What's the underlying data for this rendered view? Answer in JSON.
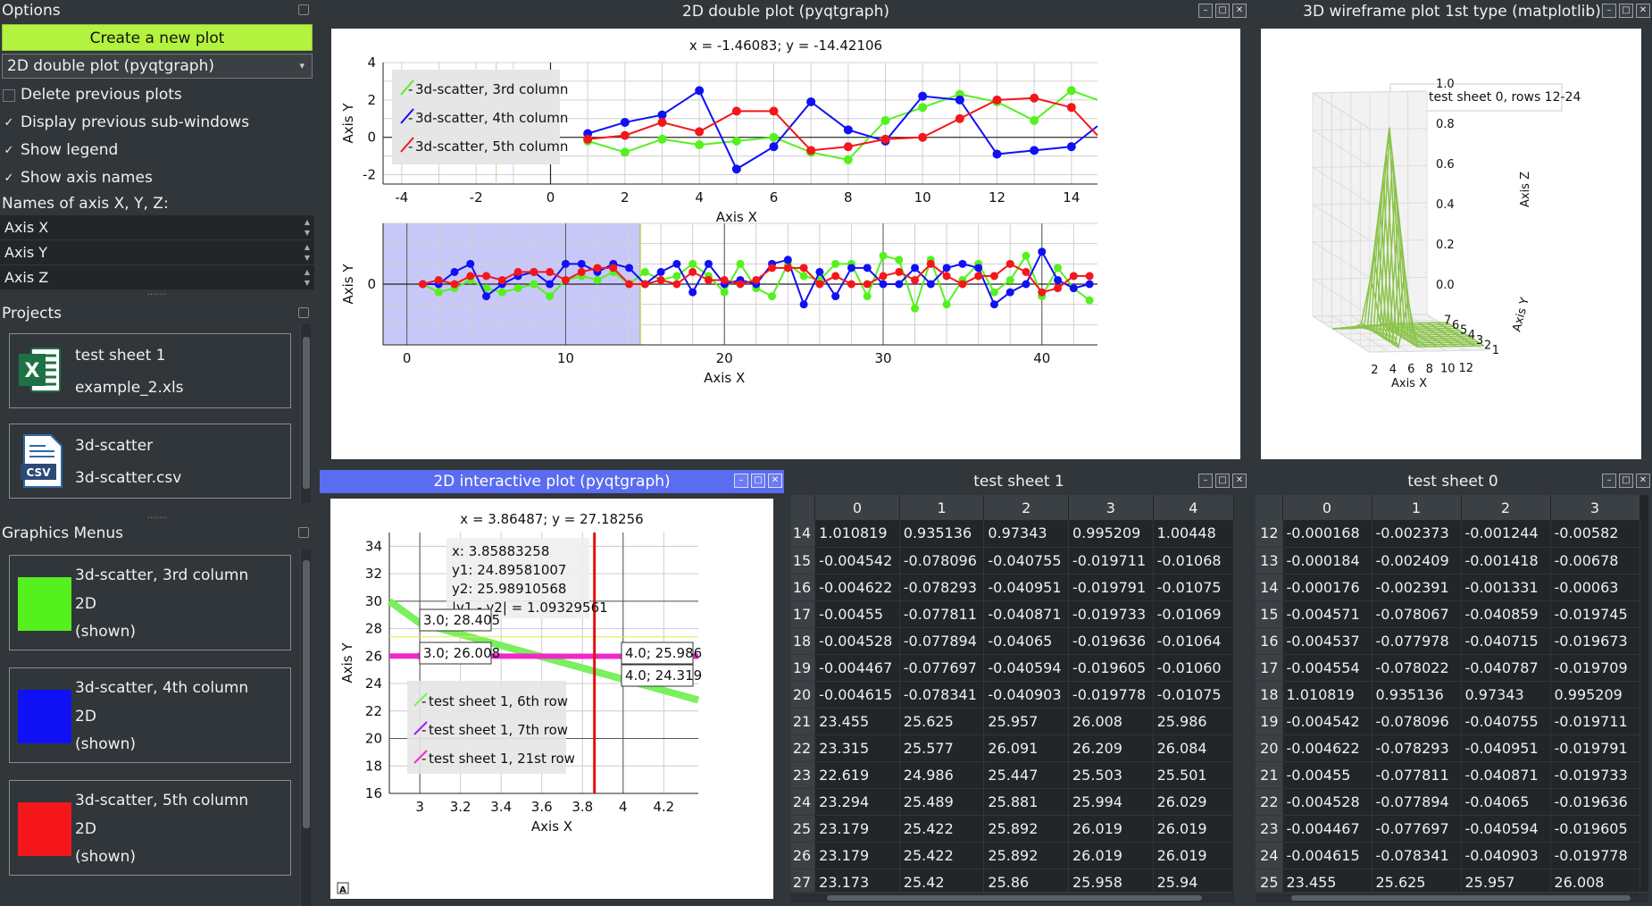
{
  "options_panel": {
    "title": "Options",
    "create_button": "Create a new plot",
    "plot_type_selected": "2D double plot (pyqtgraph)",
    "checks": [
      {
        "label": "Delete previous plots",
        "checked": false
      },
      {
        "label": "Display previous sub-windows",
        "checked": true
      },
      {
        "label": "Show legend",
        "checked": true
      },
      {
        "label": "Show axis names",
        "checked": true
      }
    ],
    "axis_names_label": "Names of axis X, Y, Z:",
    "axis_inputs": [
      "Axis X",
      "Axis Y",
      "Axis Z"
    ]
  },
  "projects_panel": {
    "title": "Projects",
    "items": [
      {
        "name": "test sheet 1",
        "file": "example_2.xls",
        "icon": "excel-icon"
      },
      {
        "name": "3d-scatter",
        "file": "3d-scatter.csv",
        "icon": "csv-file-icon",
        "badge": "CSV"
      }
    ]
  },
  "graphics_menus": {
    "title": "Graphics Menus",
    "items": [
      {
        "name": "3d-scatter, 3rd column",
        "kind": "2D",
        "state": "(shown)",
        "color": "#54f11e"
      },
      {
        "name": "3d-scatter, 4th column",
        "kind": "2D",
        "state": "(shown)",
        "color": "#1010f5"
      },
      {
        "name": "3d-scatter, 5th column",
        "kind": "2D",
        "state": "(shown)",
        "color": "#f5161b"
      }
    ]
  },
  "double_plot": {
    "title": "2D double plot (pyqtgraph)",
    "coord_readout": "x = -1.46083; y = -14.42106",
    "xlabel": "Axis X",
    "ylabel": "Axis Y",
    "legend": [
      "3d-scatter, 3rd column",
      "3d-scatter, 4th column",
      "3d-scatter, 5th column"
    ],
    "top_xticks": [
      "-4",
      "-2",
      "0",
      "2",
      "4",
      "6",
      "8",
      "10",
      "12",
      "14"
    ],
    "top_yticks": [
      "4",
      "2",
      "0",
      "-2"
    ],
    "bottom_xticks": [
      "0",
      "10",
      "20",
      "30",
      "40"
    ],
    "bottom_yticks": [
      "0"
    ],
    "bottom_xlabel": "Axis X",
    "bottom_ylabel": "Axis Y"
  },
  "wireframe_plot": {
    "title": "3D wireframe plot 1st type (matplotlib)",
    "legend": "test sheet 0, rows 12-24",
    "xlabel": "Axis X",
    "ylabel": "Axis Y",
    "zlabel": "Axis Z",
    "xticks": [
      "2",
      "4",
      "6",
      "8",
      "10",
      "12"
    ],
    "yticks": [
      "1",
      "2",
      "3",
      "4",
      "5",
      "6",
      "7"
    ],
    "zticks": [
      "1.0",
      "0.8",
      "0.6",
      "0.4",
      "0.2",
      "0.0"
    ]
  },
  "interactive_plot": {
    "title": "2D interactive plot (pyqtgraph)",
    "coord_readout": "x = 3.86487; y = 27.18256",
    "xlabel": "Axis X",
    "ylabel": "Axis Y",
    "xticks": [
      "3",
      "3.2",
      "3.4",
      "3.6",
      "3.8",
      "4",
      "4.2"
    ],
    "yticks": [
      "34",
      "32",
      "30",
      "28",
      "26",
      "24",
      "22",
      "20",
      "18",
      "16"
    ],
    "info_lines": [
      "x: 3.85883258",
      "y1: 24.89581007",
      "y2: 25.98910568",
      "|y1 - y2| = 1.09329561"
    ],
    "point_labels": [
      "3.0; 28.405",
      "3.0; 26.008",
      "4.0; 25.986",
      "4.0; 24.319"
    ],
    "legend": [
      "test sheet 1, 6th row",
      "test sheet 1, 7th row",
      "test sheet 1, 21st row"
    ],
    "corner_label": "A"
  },
  "chart_data": [
    {
      "type": "line",
      "title": "x = -1.46083; y = -14.42106",
      "xlabel": "Axis X",
      "ylabel": "Axis Y",
      "xlim": [
        -4.5,
        14.7
      ],
      "ylim": [
        -2.5,
        4
      ],
      "x": [
        1,
        2,
        3,
        4,
        5,
        6,
        7,
        8,
        9,
        10,
        11,
        12,
        13,
        14,
        14.7
      ],
      "series": [
        {
          "name": "3d-scatter, 3rd column",
          "color": "#54f11e",
          "values": [
            -0.2,
            -0.8,
            -0.1,
            -0.4,
            -0.2,
            0.0,
            -0.8,
            -1.2,
            0.9,
            1.6,
            2.3,
            1.9,
            0.9,
            2.5,
            2.0
          ]
        },
        {
          "name": "3d-scatter, 4th column",
          "color": "#1010f5",
          "values": [
            0.2,
            0.8,
            1.2,
            2.5,
            -1.7,
            -0.5,
            1.9,
            0.4,
            -0.2,
            2.2,
            2.0,
            -0.9,
            -0.7,
            -0.5,
            0.6
          ]
        },
        {
          "name": "3d-scatter, 5th column",
          "color": "#f5161b",
          "values": [
            -0.1,
            0.1,
            0.8,
            0.3,
            1.4,
            1.4,
            -0.7,
            -0.5,
            -0.1,
            0.0,
            1.0,
            2.0,
            2.1,
            1.6,
            0.1
          ]
        }
      ]
    },
    {
      "type": "line",
      "xlabel": "Axis X",
      "ylabel": "Axis Y",
      "xlim": [
        -1.5,
        43.5
      ],
      "ylim": [
        -1.5,
        1.5
      ],
      "x_start": 1,
      "series": [
        {
          "name": "3d-scatter, 3rd column",
          "color": "#54f11e",
          "values": [
            -0.0,
            -0.2,
            -0.1,
            0.1,
            -0.1,
            -0.2,
            -0.1,
            0.0,
            -0.3,
            0.1,
            0.2,
            0.1,
            0.3,
            0.0,
            0.3,
            0.1,
            0.2,
            0.5,
            0.2,
            -0.2,
            0.5,
            -0.1,
            -0.3,
            0.5,
            0.2,
            0.1,
            0.5,
            0.5,
            -0.3,
            0.7,
            0.6,
            -0.6,
            0.6,
            -0.5,
            0.1,
            0.5,
            -0.2,
            0.1,
            0.7,
            -0.3,
            0.4,
            -0.1,
            -0.4
          ]
        },
        {
          "name": "3d-scatter, 4th column",
          "color": "#1010f5",
          "values": [
            0.0,
            0.0,
            0.3,
            0.5,
            -0.3,
            0.0,
            0.2,
            0.3,
            0.0,
            0.5,
            0.5,
            0.3,
            0.5,
            0.4,
            0.0,
            0.3,
            0.5,
            -0.2,
            0.5,
            0.0,
            0.1,
            0.0,
            0.5,
            0.6,
            -0.5,
            0.3,
            -0.3,
            0.4,
            0.4,
            0.0,
            0.0,
            0.4,
            0.0,
            0.4,
            0.5,
            0.4,
            -0.5,
            -0.2,
            0.0,
            0.8,
            0.1,
            -0.1,
            0.0
          ]
        },
        {
          "name": "3d-scatter, 5th column",
          "color": "#f5161b",
          "values": [
            0.0,
            0.1,
            0.0,
            0.2,
            0.2,
            0.1,
            0.3,
            0.3,
            0.3,
            0.1,
            0.3,
            0.4,
            0.4,
            0.0,
            0.0,
            0.1,
            0.0,
            0.3,
            0.1,
            0.1,
            0.0,
            0.1,
            0.4,
            0.4,
            0.4,
            0.0,
            0.2,
            0.0,
            0.0,
            0.2,
            0.3,
            0.1,
            0.5,
            0.2,
            0.0,
            0.2,
            0.2,
            0.5,
            0.3,
            -0.2,
            -0.1,
            0.2,
            0.2
          ]
        }
      ]
    },
    {
      "type": "line",
      "title": "x = 3.86487; y = 27.18256",
      "xlabel": "Axis X",
      "ylabel": "Axis Y",
      "xlim": [
        2.85,
        4.37
      ],
      "ylim": [
        16,
        35
      ],
      "cursor_x": 3.859,
      "series": [
        {
          "name": "test sheet 1, 6th row",
          "color": "#7af05e",
          "x": [
            2.85,
            3.0,
            4.0,
            4.37
          ],
          "values": [
            30.0,
            28.405,
            24.319,
            22.8
          ]
        },
        {
          "name": "test sheet 1, 7th row",
          "color": "#a020f0",
          "x": [
            2.85,
            4.37
          ],
          "values": [
            27.4,
            27.4
          ]
        },
        {
          "name": "test sheet 1, 21st row",
          "color": "#f028c8",
          "x": [
            2.85,
            3.0,
            4.0,
            4.37
          ],
          "values": [
            26.008,
            26.008,
            25.986,
            25.986
          ]
        }
      ]
    }
  ],
  "table_sheet1": {
    "title": "test sheet 1",
    "columns": [
      "0",
      "1",
      "2",
      "3",
      "4"
    ],
    "rows": [
      {
        "idx": "14",
        "cells": [
          "1.010819",
          "0.935136",
          "0.97343",
          "0.995209",
          "1.00448"
        ]
      },
      {
        "idx": "15",
        "cells": [
          "-0.004542",
          "-0.078096",
          "-0.040755",
          "-0.019711",
          "-0.01068"
        ]
      },
      {
        "idx": "16",
        "cells": [
          "-0.004622",
          "-0.078293",
          "-0.040951",
          "-0.019791",
          "-0.01075"
        ]
      },
      {
        "idx": "17",
        "cells": [
          "-0.00455",
          "-0.077811",
          "-0.040871",
          "-0.019733",
          "-0.01069"
        ]
      },
      {
        "idx": "18",
        "cells": [
          "-0.004528",
          "-0.077894",
          "-0.04065",
          "-0.019636",
          "-0.01064"
        ]
      },
      {
        "idx": "19",
        "cells": [
          "-0.004467",
          "-0.077697",
          "-0.040594",
          "-0.019605",
          "-0.01060"
        ]
      },
      {
        "idx": "20",
        "cells": [
          "-0.004615",
          "-0.078341",
          "-0.040903",
          "-0.019778",
          "-0.01075"
        ]
      },
      {
        "idx": "21",
        "cells": [
          "23.455",
          "25.625",
          "25.957",
          "26.008",
          "25.986"
        ]
      },
      {
        "idx": "22",
        "cells": [
          "23.315",
          "25.577",
          "26.091",
          "26.209",
          "26.084"
        ]
      },
      {
        "idx": "23",
        "cells": [
          "22.619",
          "24.986",
          "25.447",
          "25.503",
          "25.501"
        ]
      },
      {
        "idx": "24",
        "cells": [
          "23.294",
          "25.489",
          "25.881",
          "25.994",
          "26.029"
        ]
      },
      {
        "idx": "25",
        "cells": [
          "23.179",
          "25.422",
          "25.892",
          "26.019",
          "26.019"
        ]
      },
      {
        "idx": "26",
        "cells": [
          "23.179",
          "25.422",
          "25.892",
          "26.019",
          "26.019"
        ]
      },
      {
        "idx": "27",
        "cells": [
          "23.173",
          "25.42",
          "25.86",
          "25.958",
          "25.94"
        ]
      }
    ]
  },
  "table_sheet0": {
    "title": "test sheet 0",
    "columns": [
      "0",
      "1",
      "2",
      "3"
    ],
    "rows": [
      {
        "idx": "12",
        "cells": [
          "-0.000168",
          "-0.002373",
          "-0.001244",
          "-0.00582"
        ]
      },
      {
        "idx": "13",
        "cells": [
          "-0.000184",
          "-0.002409",
          "-0.001418",
          "-0.00678"
        ]
      },
      {
        "idx": "14",
        "cells": [
          "-0.000176",
          "-0.002391",
          "-0.001331",
          "-0.00063"
        ]
      },
      {
        "idx": "15",
        "cells": [
          "-0.004571",
          "-0.078067",
          "-0.040859",
          "-0.019745"
        ]
      },
      {
        "idx": "16",
        "cells": [
          "-0.004537",
          "-0.077978",
          "-0.040715",
          "-0.019673"
        ]
      },
      {
        "idx": "17",
        "cells": [
          "-0.004554",
          "-0.078022",
          "-0.040787",
          "-0.019709"
        ]
      },
      {
        "idx": "18",
        "cells": [
          "1.010819",
          "0.935136",
          "0.97343",
          "0.995209"
        ]
      },
      {
        "idx": "19",
        "cells": [
          "-0.004542",
          "-0.078096",
          "-0.040755",
          "-0.019711"
        ]
      },
      {
        "idx": "20",
        "cells": [
          "-0.004622",
          "-0.078293",
          "-0.040951",
          "-0.019791"
        ]
      },
      {
        "idx": "21",
        "cells": [
          "-0.00455",
          "-0.077811",
          "-0.040871",
          "-0.019733"
        ]
      },
      {
        "idx": "22",
        "cells": [
          "-0.004528",
          "-0.077894",
          "-0.04065",
          "-0.019636"
        ]
      },
      {
        "idx": "23",
        "cells": [
          "-0.004467",
          "-0.077697",
          "-0.040594",
          "-0.019605"
        ]
      },
      {
        "idx": "24",
        "cells": [
          "-0.004615",
          "-0.078341",
          "-0.040903",
          "-0.019778"
        ]
      },
      {
        "idx": "25",
        "cells": [
          "23.455",
          "25.625",
          "25.957",
          "26.008"
        ]
      }
    ]
  }
}
